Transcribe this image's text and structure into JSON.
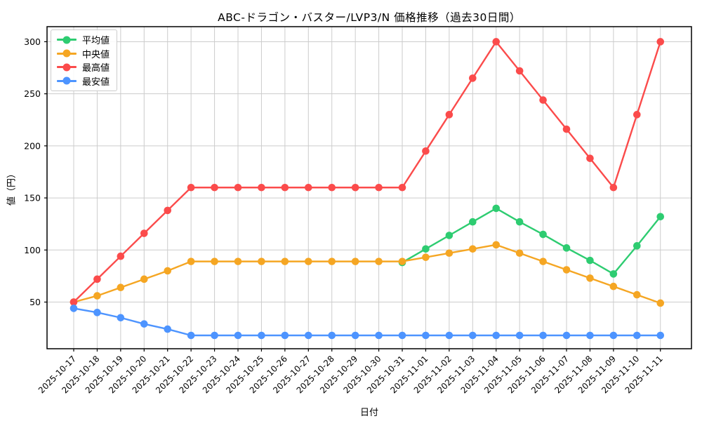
{
  "chart_data": {
    "type": "line",
    "title": "ABC-ドラゴン・バスター/LVP3/N 価格推移（過去30日間）",
    "xlabel": "日付",
    "ylabel": "値（円）",
    "x": [
      "2025-10-17",
      "2025-10-18",
      "2025-10-19",
      "2025-10-20",
      "2025-10-21",
      "2025-10-22",
      "2025-10-23",
      "2025-10-24",
      "2025-10-25",
      "2025-10-26",
      "2025-10-27",
      "2025-10-28",
      "2025-10-29",
      "2025-10-30",
      "2025-10-31",
      "2025-11-01",
      "2025-11-02",
      "2025-11-03",
      "2025-11-04",
      "2025-11-05",
      "2025-11-06",
      "2025-11-07",
      "2025-11-08",
      "2025-11-09",
      "2025-11-10",
      "2025-11-11"
    ],
    "series": [
      {
        "name": "平均値",
        "color": "#2ecc71",
        "values": [
          null,
          null,
          null,
          null,
          null,
          null,
          null,
          null,
          null,
          null,
          null,
          null,
          null,
          null,
          88,
          101,
          114,
          127,
          140,
          127,
          115,
          102,
          90,
          77,
          104,
          132
        ]
      },
      {
        "name": "中央値",
        "color": "#f5a623",
        "values": [
          50,
          56,
          64,
          72,
          80,
          89,
          89,
          89,
          89,
          89,
          89,
          89,
          89,
          89,
          89,
          93,
          97,
          101,
          105,
          97,
          89,
          81,
          73,
          65,
          57,
          49
        ]
      },
      {
        "name": "最高値",
        "color": "#fb4b4b",
        "values": [
          50,
          72,
          94,
          116,
          138,
          160,
          160,
          160,
          160,
          160,
          160,
          160,
          160,
          160,
          160,
          195,
          230,
          265,
          300,
          272,
          244,
          216,
          188,
          160,
          230,
          300
        ]
      },
      {
        "name": "最安値",
        "color": "#4d94ff",
        "values": [
          44,
          40,
          35,
          29,
          24,
          18,
          18,
          18,
          18,
          18,
          18,
          18,
          18,
          18,
          18,
          18,
          18,
          18,
          18,
          18,
          18,
          18,
          18,
          18,
          18,
          18
        ]
      }
    ],
    "yticks": [
      50,
      100,
      150,
      200,
      250,
      300
    ],
    "ylim": [
      5,
      315
    ],
    "grid": true,
    "grid_color": "#cccccc",
    "legend_position": "upper left"
  }
}
